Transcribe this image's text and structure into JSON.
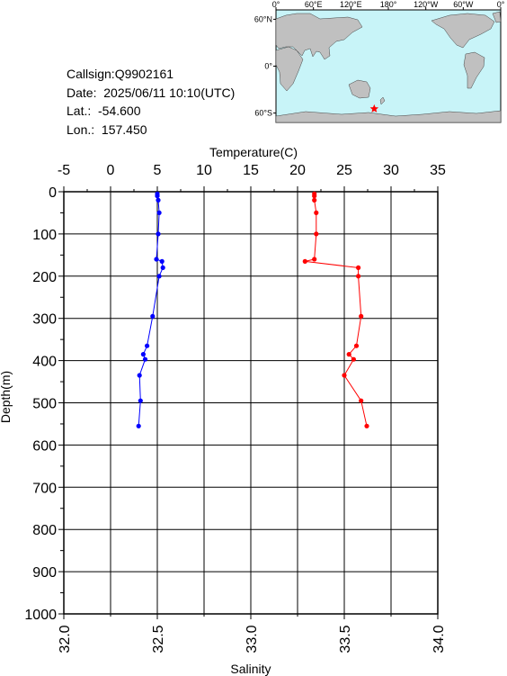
{
  "info": {
    "callsign": "Callsign:Q9902161",
    "date": "Date:  2025/06/11 10:10(UTC)",
    "lat": "Lat.:  -54.600",
    "lon": "Lon.:  157.450"
  },
  "map": {
    "lon_labels": [
      "0°",
      "60°E",
      "120°E",
      "180°",
      "120°W",
      "60°W",
      "0°"
    ],
    "lat_labels": [
      "60°N",
      "0°",
      "60°S"
    ],
    "ocean_color": "#c8f4f8",
    "land_color": "#c0c0c0",
    "marker": {
      "lon": 157.45,
      "lat": -54.6,
      "color": "#ff0000",
      "icon": "star-icon"
    }
  },
  "chart_data": {
    "type": "line",
    "xlabel_top": "Temperature(C)",
    "xlabel_bottom": "Salinity",
    "ylabel": "Depth(m)",
    "temperature_ticks": [
      "-5",
      "0",
      "5",
      "10",
      "15",
      "20",
      "25",
      "30",
      "35"
    ],
    "salinity_ticks": [
      "32.0",
      "32.5",
      "33.0",
      "33.5",
      "34.0"
    ],
    "depth_ticks": [
      "0",
      "100",
      "200",
      "300",
      "400",
      "500",
      "600",
      "700",
      "800",
      "900",
      "1000"
    ],
    "xlim_temperature": [
      -5,
      35
    ],
    "xlim_salinity": [
      32.0,
      34.0
    ],
    "ylim_depth": [
      0,
      1000
    ],
    "grid": true,
    "series": [
      {
        "axis": "salinity",
        "color": "#0000ff",
        "points": [
          {
            "x": 32.5,
            "y": 5
          },
          {
            "x": 32.5,
            "y": 10
          },
          {
            "x": 32.505,
            "y": 20
          },
          {
            "x": 32.51,
            "y": 50
          },
          {
            "x": 32.505,
            "y": 100
          },
          {
            "x": 32.495,
            "y": 160
          },
          {
            "x": 32.525,
            "y": 165
          },
          {
            "x": 32.53,
            "y": 180
          },
          {
            "x": 32.51,
            "y": 200
          },
          {
            "x": 32.475,
            "y": 295
          },
          {
            "x": 32.445,
            "y": 365
          },
          {
            "x": 32.425,
            "y": 385
          },
          {
            "x": 32.435,
            "y": 397
          },
          {
            "x": 32.405,
            "y": 435
          },
          {
            "x": 32.41,
            "y": 495
          },
          {
            "x": 32.4,
            "y": 555
          }
        ]
      },
      {
        "axis": "temperature",
        "color": "#ff0000",
        "points": [
          {
            "x": 21.8,
            "y": 5
          },
          {
            "x": 21.8,
            "y": 10
          },
          {
            "x": 21.8,
            "y": 20
          },
          {
            "x": 22.0,
            "y": 50
          },
          {
            "x": 22.0,
            "y": 100
          },
          {
            "x": 21.8,
            "y": 160
          },
          {
            "x": 20.8,
            "y": 165
          },
          {
            "x": 26.5,
            "y": 180
          },
          {
            "x": 26.5,
            "y": 200
          },
          {
            "x": 26.8,
            "y": 295
          },
          {
            "x": 26.3,
            "y": 365
          },
          {
            "x": 25.5,
            "y": 385
          },
          {
            "x": 26.0,
            "y": 397
          },
          {
            "x": 25.0,
            "y": 435
          },
          {
            "x": 26.8,
            "y": 495
          },
          {
            "x": 27.4,
            "y": 555
          }
        ]
      }
    ]
  }
}
